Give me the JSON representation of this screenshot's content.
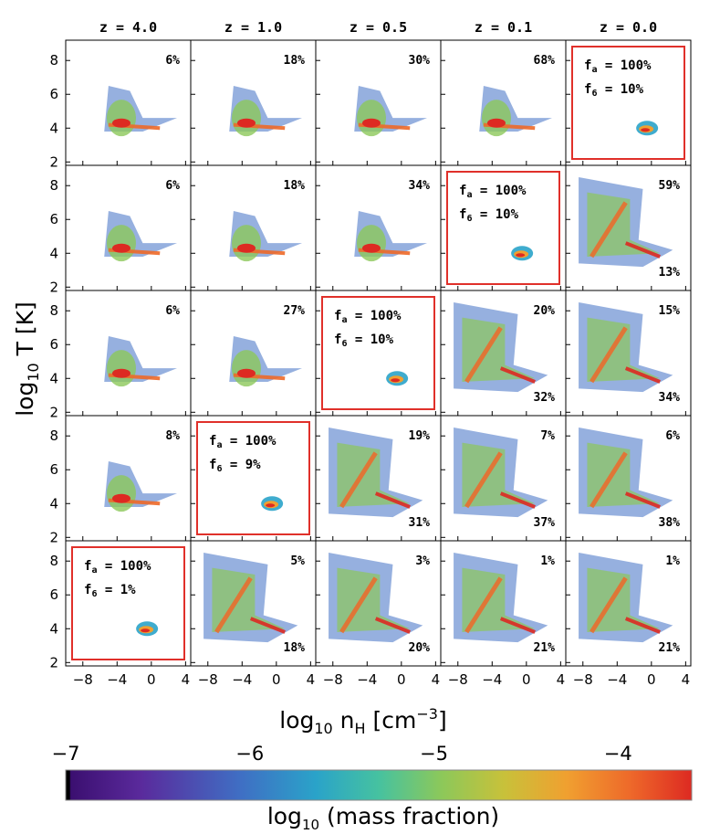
{
  "chart_data": {
    "type": "heatmap",
    "title": "",
    "columns": [
      "z = 4.0",
      "z = 1.0",
      "z = 0.5",
      "z = 0.1",
      "z = 0.0"
    ],
    "xlabel": "log₁₀ n_H [cm⁻³]",
    "ylabel": "log₁₀ T [K]",
    "xlim": [
      -10,
      4.6
    ],
    "ylim": [
      1.8,
      9.2
    ],
    "xticks": [
      "-8",
      "-4",
      "0",
      "4"
    ],
    "yticks": [
      "2",
      "4",
      "6",
      "8"
    ],
    "rows": [
      [
        {
          "top": "6%"
        },
        {
          "top": "18%"
        },
        {
          "top": "30%"
        },
        {
          "top": "68%"
        },
        {
          "box": {
            "fa": "100%",
            "f6": "10%"
          }
        }
      ],
      [
        {
          "top": "6%"
        },
        {
          "top": "18%"
        },
        {
          "top": "34%"
        },
        {
          "box": {
            "fa": "100%",
            "f6": "10%"
          }
        },
        {
          "top": "59%",
          "bottom": "13%"
        }
      ],
      [
        {
          "top": "6%"
        },
        {
          "top": "27%"
        },
        {
          "box": {
            "fa": "100%",
            "f6": "10%"
          }
        },
        {
          "top": "20%",
          "bottom": "32%"
        },
        {
          "top": "15%",
          "bottom": "34%"
        }
      ],
      [
        {
          "top": "8%"
        },
        {
          "box": {
            "fa": "100%",
            "f6": "9%"
          }
        },
        {
          "top": "19%",
          "bottom": "31%"
        },
        {
          "top": "7%",
          "bottom": "37%"
        },
        {
          "top": "6%",
          "bottom": "38%"
        }
      ],
      [
        {
          "box": {
            "fa": "100%",
            "f6": "1%"
          }
        },
        {
          "top": "5%",
          "bottom": "18%"
        },
        {
          "top": "3%",
          "bottom": "20%"
        },
        {
          "top": "1%",
          "bottom": "21%"
        },
        {
          "top": "1%",
          "bottom": "21%"
        }
      ]
    ],
    "colorbar": {
      "label": "log₁₀ (mass fraction)",
      "ticks": [
        "−7",
        "−6",
        "−5",
        "−4"
      ],
      "range": [
        -7,
        -3.6
      ],
      "colors": [
        "#000000",
        "#3b0f70",
        "#5a2a9c",
        "#3f6fc4",
        "#2aa3c9",
        "#46c2a0",
        "#8cc85a",
        "#c8c13a",
        "#f0a030",
        "#ee6a2a",
        "#dd2a22"
      ]
    },
    "box_color": "#e0302a"
  }
}
